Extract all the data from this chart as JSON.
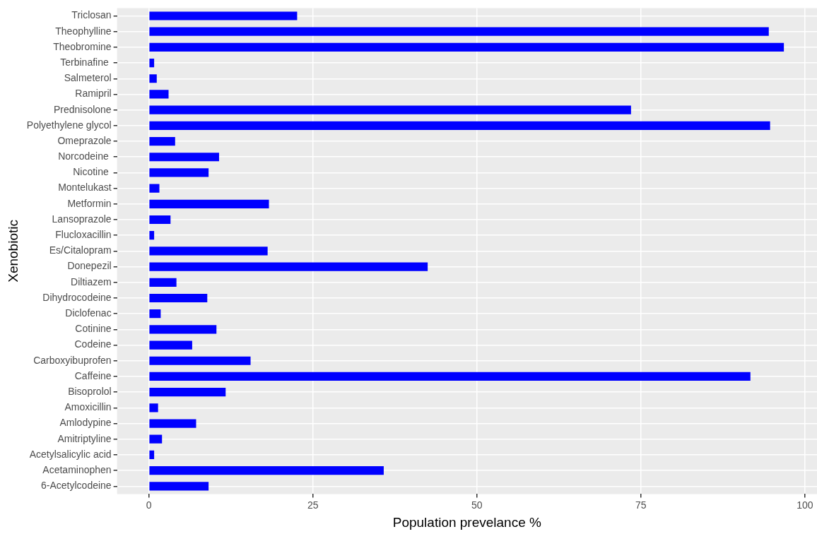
{
  "chart_data": {
    "type": "bar",
    "orientation": "horizontal",
    "xlabel": "Population prevelance %",
    "ylabel": "Xenobiotic",
    "categories": [
      "Triclosan",
      "Theophylline",
      "Theobromine",
      "Terbinafine ",
      "Salmeterol",
      "Ramipril",
      "Prednisolone",
      "Polyethylene glycol",
      "Omeprazole",
      "Norcodeine ",
      "Nicotine ",
      "Montelukast",
      "Metformin",
      "Lansoprazole",
      "Flucloxacillin",
      "Es/Citalopram",
      "Donepezil",
      "Diltiazem",
      "Dihydrocodeine",
      "Diclofenac",
      "Cotinine",
      "Codeine",
      "Carboxyibuprofen",
      "Caffeine",
      "Bisoprolol",
      "Amoxicillin",
      "Amlodypine",
      "Amitriptyline",
      "Acetylsalicylic acid",
      "Acetaminophen",
      "6-Acetylcodeine"
    ],
    "values": [
      22.6,
      94.5,
      96.8,
      0.8,
      1.2,
      3.0,
      73.5,
      94.7,
      4.0,
      10.7,
      9.1,
      1.6,
      18.3,
      3.3,
      0.8,
      18.1,
      42.5,
      4.2,
      8.9,
      1.8,
      10.3,
      6.6,
      15.5,
      91.7,
      11.7,
      1.4,
      7.2,
      2.0,
      0.8,
      35.8,
      9.1
    ],
    "color": "#0000ff",
    "xlim": [
      -4.85,
      101.85
    ],
    "xticks": [
      0,
      25,
      50,
      75,
      100
    ],
    "grid": true,
    "legend": false
  }
}
